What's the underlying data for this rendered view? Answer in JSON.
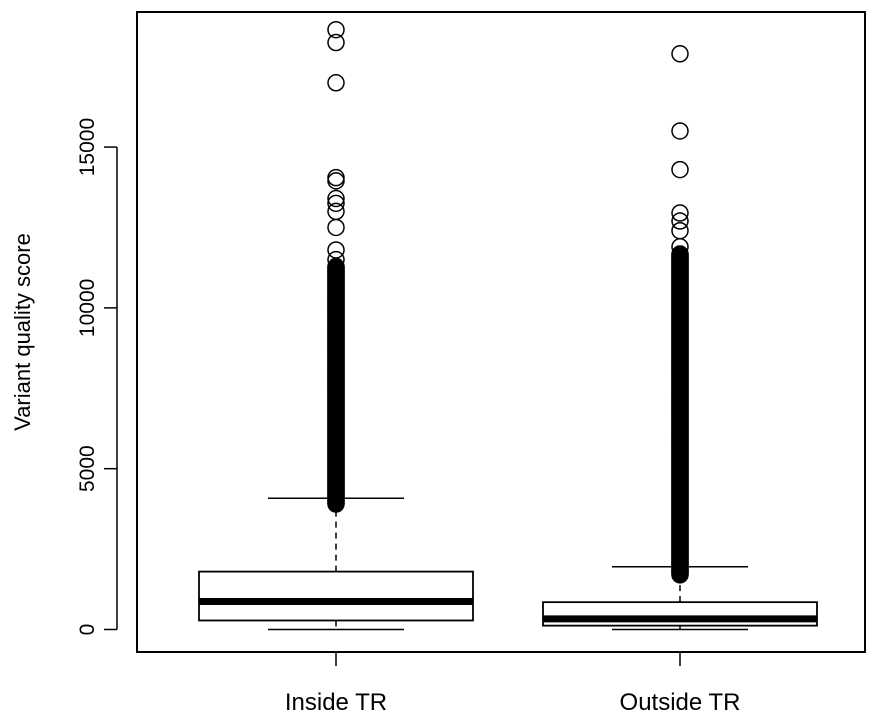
{
  "chart_data": {
    "type": "box",
    "ylabel": "Variant quality score",
    "xlabel": "",
    "ylim": [
      -700,
      19200
    ],
    "yticks": [
      0,
      5000,
      10000,
      15000
    ],
    "categories": [
      "Inside TR",
      "Outside TR"
    ],
    "boxes": [
      {
        "name": "Inside TR",
        "min": 0,
        "q1": 280,
        "median": 870,
        "q3": 1800,
        "upper_whisker": 4080,
        "outliers_dense_range": [
          3900,
          11300
        ],
        "outliers": [
          11500,
          11800,
          12500,
          13000,
          13250,
          13400,
          13950,
          14050,
          17000,
          18250,
          18650
        ]
      },
      {
        "name": "Outside TR",
        "min": 0,
        "q1": 120,
        "median": 330,
        "q3": 850,
        "upper_whisker": 1950,
        "outliers_dense_range": [
          1700,
          11700
        ],
        "outliers": [
          11900,
          12400,
          12700,
          12950,
          14300,
          15500,
          17900
        ]
      }
    ]
  }
}
